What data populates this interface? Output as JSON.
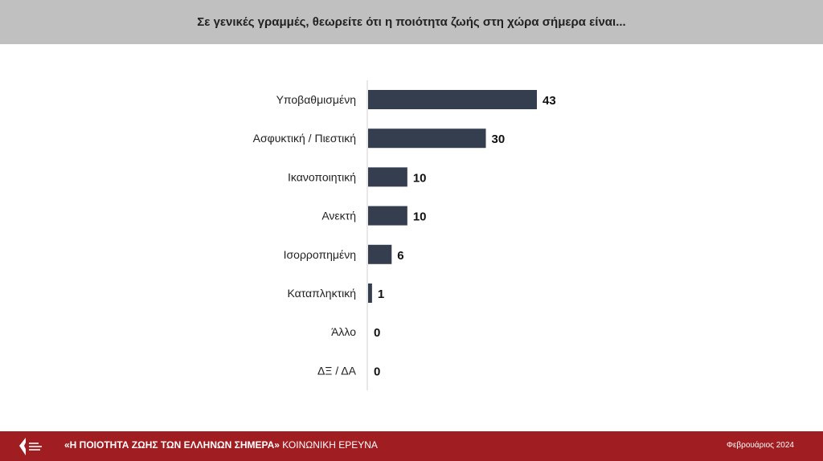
{
  "header": {
    "title": "Σε γενικές γραμμές, θεωρείτε ότι η ποιότητα ζωής στη χώρα σήμερα είναι..."
  },
  "chart_data": {
    "type": "bar",
    "orientation": "horizontal",
    "title": "Σε γενικές γραμμές, θεωρείτε ότι η ποιότητα ζωής στη χώρα σήμερα είναι...",
    "categories": [
      "Υποβαθμισμένη",
      "Ασφυκτική / Πιεστική",
      "Ικανοποιητική",
      "Ανεκτή",
      "Ισορροπημένη",
      "Καταπληκτική",
      "Άλλο",
      "ΔΞ / ΔΑ"
    ],
    "values": [
      43,
      30,
      10,
      10,
      6,
      1,
      0,
      0
    ],
    "xlim": [
      0,
      43
    ],
    "grid": false,
    "colors": {
      "bar": "#353e4f"
    }
  },
  "footer": {
    "title_bold": "«Η ΠΟΙΟΤΗΤΑ ΖΩΗΣ ΤΩΝ ΕΛΛΗΝΩΝ ΣΗΜΕΡΑ»",
    "title_rest": " ΚΟΙΝΩΝΙΚΗ ΕΡΕΥΝΑ",
    "date": "Φεβρουάριος 2024",
    "logo_icon": "logo-icon",
    "background": "#a01d22"
  }
}
